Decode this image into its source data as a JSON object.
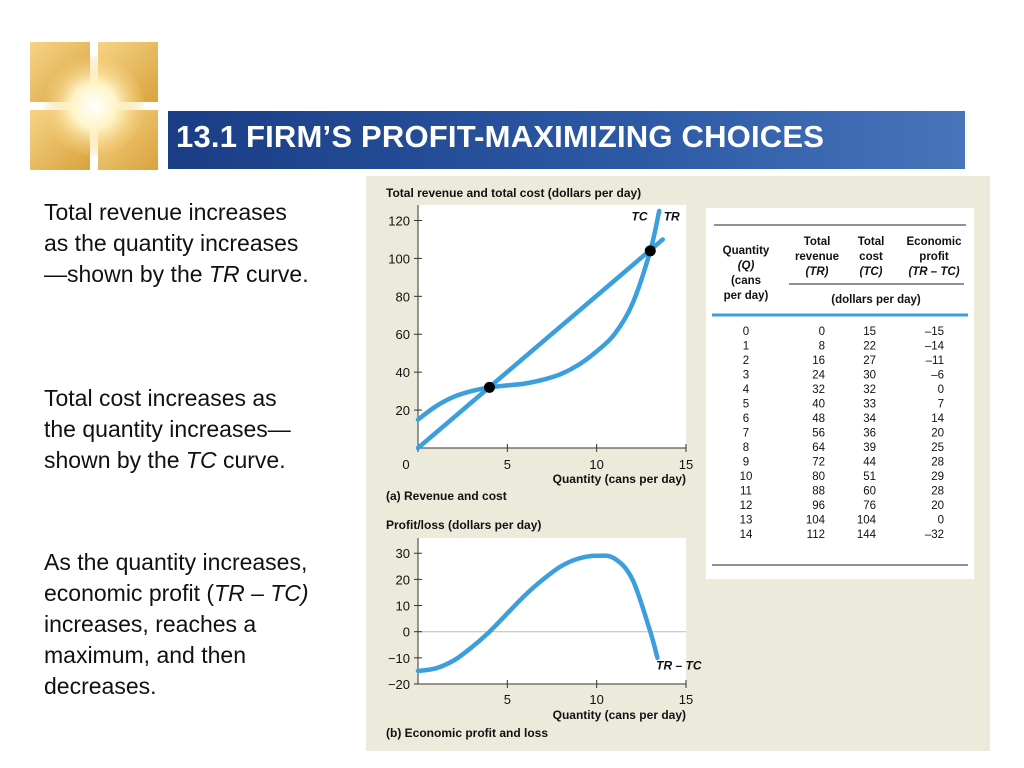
{
  "slide": {
    "title": "13.1 FIRM’S PROFIT-MAXIMIZING CHOICES",
    "paragraphs": [
      [
        {
          "t": "Total revenue increases as the quantity increases —shown by the "
        },
        {
          "t": "TR",
          "i": true
        },
        {
          "t": " curve."
        }
      ],
      [
        {
          "t": "Total cost increases as the quantity increases—shown by the "
        },
        {
          "t": "TC",
          "i": true
        },
        {
          "t": " curve."
        }
      ],
      [
        {
          "t": "As the quantity increases, economic profit ("
        },
        {
          "t": "TR – TC)",
          "i": true
        },
        {
          "t": " increases, reaches a maximum, and then decreases."
        }
      ]
    ]
  },
  "colors": {
    "title_bar": "#1f4a90",
    "curve": "#3b9fde",
    "panel_bg": "#ecebdb",
    "table_rule": "#3b9fde"
  },
  "chart_data": [
    {
      "type": "line",
      "ylabel": "Total revenue and total cost (dollars per day)",
      "xlabel": "Quantity (cans per day)",
      "caption": "(a) Revenue and cost",
      "xlim": [
        0,
        15
      ],
      "ylim": [
        0,
        125
      ],
      "x_ticks": [
        0,
        5,
        10,
        15
      ],
      "y_ticks": [
        20,
        40,
        60,
        80,
        100,
        120
      ],
      "series": [
        {
          "name": "TR",
          "x": [
            0,
            13.7
          ],
          "y": [
            0,
            110
          ]
        },
        {
          "name": "TC",
          "x": [
            0,
            1,
            2,
            3,
            4,
            5,
            6,
            7,
            8,
            9,
            10,
            11,
            12,
            13,
            13.5
          ],
          "y": [
            15,
            22,
            27,
            30,
            32,
            33,
            34,
            36,
            39,
            44,
            51,
            60,
            76,
            104,
            125
          ]
        }
      ],
      "points": [
        {
          "x": 4,
          "y": 32
        },
        {
          "x": 13,
          "y": 104
        }
      ]
    },
    {
      "type": "line",
      "ylabel": "Profit/loss (dollars per day)",
      "xlabel": "Quantity (cans per day)",
      "caption": "(b) Economic profit and loss",
      "xlim": [
        0,
        15
      ],
      "ylim": [
        -20,
        32
      ],
      "x_ticks": [
        5,
        10,
        15
      ],
      "y_ticks": [
        30,
        20,
        10,
        0,
        -10,
        -20
      ],
      "y_tick_labels": [
        "30",
        "20",
        "10",
        "0",
        "−10",
        "−20"
      ],
      "series": [
        {
          "name": "TR – TC",
          "x": [
            0,
            1,
            2,
            3,
            4,
            5,
            6,
            7,
            8,
            9,
            10,
            11,
            12,
            13,
            13.4
          ],
          "y": [
            -15,
            -14,
            -11,
            -6,
            0,
            7,
            14,
            20,
            25,
            28,
            29,
            28,
            20,
            0,
            -10
          ]
        }
      ]
    },
    {
      "type": "table",
      "columns": [
        {
          "lines": [
            "Quantity",
            "(Q)",
            "(cans",
            "per day)"
          ]
        },
        {
          "lines": [
            "Total",
            "revenue",
            "(TR)"
          ]
        },
        {
          "lines": [
            "Total",
            "cost",
            "(TC)"
          ]
        },
        {
          "lines": [
            "Economic",
            "profit",
            "(TR – TC)"
          ]
        }
      ],
      "unit_note": "(dollars per day)",
      "rows": [
        [
          "0",
          "0",
          "15",
          "–15"
        ],
        [
          "1",
          "8",
          "22",
          "–14"
        ],
        [
          "2",
          "16",
          "27",
          "–11"
        ],
        [
          "3",
          "24",
          "30",
          "–6"
        ],
        [
          "4",
          "32",
          "32",
          "0"
        ],
        [
          "5",
          "40",
          "33",
          "7"
        ],
        [
          "6",
          "48",
          "34",
          "14"
        ],
        [
          "7",
          "56",
          "36",
          "20"
        ],
        [
          "8",
          "64",
          "39",
          "25"
        ],
        [
          "9",
          "72",
          "44",
          "28"
        ],
        [
          "10",
          "80",
          "51",
          "29"
        ],
        [
          "11",
          "88",
          "60",
          "28"
        ],
        [
          "12",
          "96",
          "76",
          "20"
        ],
        [
          "13",
          "104",
          "104",
          "0"
        ],
        [
          "14",
          "112",
          "144",
          "–32"
        ]
      ]
    }
  ]
}
